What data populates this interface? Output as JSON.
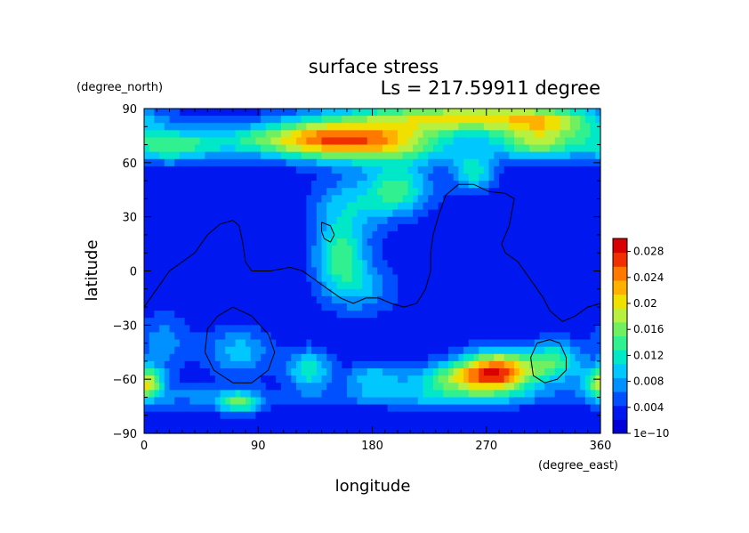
{
  "chart_data": {
    "type": "heatmap",
    "title": "surface stress",
    "subtitle": "Ls = 217.59911 degree",
    "xlabel": "longitude",
    "ylabel": "latitude",
    "x_units": "(degree_east)",
    "y_units": "(degree_north)",
    "xlim": [
      0,
      360
    ],
    "ylim": [
      -90,
      90
    ],
    "x_ticks": [
      "0",
      "90",
      "180",
      "270",
      "360"
    ],
    "y_ticks": [
      "90",
      "60",
      "30",
      "0",
      "−30",
      "−60",
      "−90"
    ],
    "colorbar": {
      "min": 0,
      "max": 0.03,
      "tick_labels": [
        "0.028",
        "0.024",
        "0.02",
        "0.016",
        "0.012",
        "0.008",
        "0.004",
        "1e−10"
      ],
      "tick_values": [
        0.028,
        0.024,
        0.02,
        0.016,
        0.012,
        0.008,
        0.004,
        0
      ],
      "colors": [
        "#0000d8",
        "#0018f0",
        "#0050ff",
        "#0090ff",
        "#00c8ff",
        "#00e8c8",
        "#30f090",
        "#70f060",
        "#b8f040",
        "#f0e000",
        "#ffb000",
        "#ff7800",
        "#f03000",
        "#d80000"
      ]
    },
    "background_value": 0.0025,
    "features": [
      {
        "lon": 75,
        "lat": 72,
        "sx": 60,
        "sy": 6,
        "v": 0.007
      },
      {
        "lon": 20,
        "lat": 68,
        "sx": 22,
        "sy": 6,
        "v": 0.008
      },
      {
        "lon": 150,
        "lat": 73,
        "sx": 40,
        "sy": 8,
        "v": 0.018
      },
      {
        "lon": 250,
        "lat": 85,
        "sx": 60,
        "sy": 6,
        "v": 0.016
      },
      {
        "lon": 320,
        "lat": 82,
        "sx": 30,
        "sy": 6,
        "v": 0.01
      },
      {
        "lon": 310,
        "lat": 70,
        "sx": 25,
        "sy": 6,
        "v": 0.012
      },
      {
        "lon": 205,
        "lat": 70,
        "sx": 35,
        "sy": 8,
        "v": 0.009
      },
      {
        "lon": 200,
        "lat": 45,
        "sx": 18,
        "sy": 10,
        "v": 0.011
      },
      {
        "lon": 160,
        "lat": 35,
        "sx": 20,
        "sy": 12,
        "v": 0.007
      },
      {
        "lon": 260,
        "lat": 55,
        "sx": 12,
        "sy": 8,
        "v": 0.009
      },
      {
        "lon": 155,
        "lat": 8,
        "sx": 14,
        "sy": 12,
        "v": 0.011
      },
      {
        "lon": 170,
        "lat": -10,
        "sx": 20,
        "sy": 10,
        "v": 0.006
      },
      {
        "lon": 75,
        "lat": -45,
        "sx": 18,
        "sy": 10,
        "v": 0.007
      },
      {
        "lon": 130,
        "lat": -55,
        "sx": 12,
        "sy": 8,
        "v": 0.01
      },
      {
        "lon": 180,
        "lat": -60,
        "sx": 15,
        "sy": 6,
        "v": 0.007
      },
      {
        "lon": 280,
        "lat": -55,
        "sx": 22,
        "sy": 8,
        "v": 0.02
      },
      {
        "lon": 250,
        "lat": -60,
        "sx": 30,
        "sy": 6,
        "v": 0.012
      },
      {
        "lon": 325,
        "lat": -50,
        "sx": 15,
        "sy": 8,
        "v": 0.01
      },
      {
        "lon": 358,
        "lat": -62,
        "sx": 10,
        "sy": 6,
        "v": 0.009
      },
      {
        "lon": 5,
        "lat": -62,
        "sx": 8,
        "sy": 6,
        "v": 0.008
      },
      {
        "lon": 75,
        "lat": -73,
        "sx": 12,
        "sy": 4,
        "v": 0.011
      },
      {
        "lon": 230,
        "lat": -70,
        "sx": 60,
        "sy": 4,
        "v": 0.006
      },
      {
        "lon": 40,
        "lat": -70,
        "sx": 40,
        "sy": 5,
        "v": 0.004
      },
      {
        "lon": 15,
        "lat": -40,
        "sx": 15,
        "sy": 12,
        "v": 0.005
      }
    ],
    "topography_contours": [
      [
        [
          0,
          -20
        ],
        [
          10,
          -10
        ],
        [
          20,
          0
        ],
        [
          30,
          5
        ],
        [
          40,
          10
        ],
        [
          50,
          20
        ],
        [
          60,
          26
        ],
        [
          70,
          28
        ],
        [
          75,
          25
        ],
        [
          78,
          15
        ],
        [
          80,
          5
        ],
        [
          85,
          0
        ],
        [
          100,
          0
        ],
        [
          115,
          2
        ],
        [
          125,
          0
        ],
        [
          135,
          -5
        ],
        [
          145,
          -10
        ],
        [
          155,
          -15
        ],
        [
          165,
          -18
        ],
        [
          175,
          -15
        ],
        [
          185,
          -15
        ],
        [
          195,
          -18
        ],
        [
          205,
          -20
        ],
        [
          215,
          -18
        ],
        [
          222,
          -10
        ],
        [
          226,
          0
        ],
        [
          226,
          10
        ],
        [
          228,
          20
        ],
        [
          232,
          30
        ],
        [
          238,
          42
        ],
        [
          248,
          48
        ],
        [
          260,
          48
        ],
        [
          272,
          44
        ],
        [
          285,
          43
        ],
        [
          292,
          40
        ],
        [
          288,
          25
        ],
        [
          282,
          15
        ],
        [
          285,
          10
        ],
        [
          295,
          5
        ],
        [
          305,
          -5
        ],
        [
          315,
          -15
        ],
        [
          320,
          -22
        ],
        [
          330,
          -28
        ],
        [
          340,
          -25
        ],
        [
          350,
          -20
        ],
        [
          360,
          -18
        ]
      ],
      [
        [
          140,
          27
        ],
        [
          147,
          25
        ],
        [
          150,
          20
        ],
        [
          147,
          16
        ],
        [
          142,
          18
        ],
        [
          140,
          22
        ],
        [
          140,
          27
        ]
      ],
      [
        [
          70,
          -20
        ],
        [
          85,
          -25
        ],
        [
          98,
          -35
        ],
        [
          103,
          -45
        ],
        [
          98,
          -55
        ],
        [
          85,
          -62
        ],
        [
          70,
          -62
        ],
        [
          55,
          -55
        ],
        [
          48,
          -45
        ],
        [
          50,
          -32
        ],
        [
          58,
          -25
        ],
        [
          70,
          -20
        ]
      ],
      [
        [
          320,
          -38
        ],
        [
          328,
          -40
        ],
        [
          333,
          -48
        ],
        [
          333,
          -55
        ],
        [
          326,
          -60
        ],
        [
          316,
          -62
        ],
        [
          307,
          -58
        ],
        [
          305,
          -48
        ],
        [
          310,
          -40
        ],
        [
          320,
          -38
        ]
      ]
    ]
  }
}
